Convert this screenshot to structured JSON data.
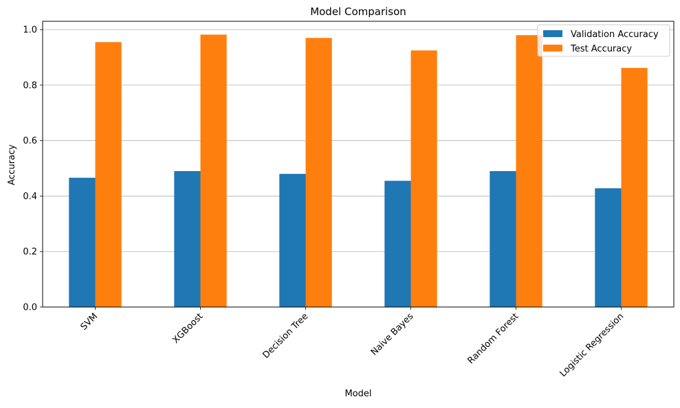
{
  "chart_data": {
    "type": "bar",
    "title": "Model Comparison",
    "xlabel": "Model",
    "ylabel": "Accuracy",
    "categories": [
      "SVM",
      "XGBoost",
      "Decision Tree",
      "Naive Bayes",
      "Random Forest",
      "Logistic Regression"
    ],
    "series": [
      {
        "name": "Validation Accuracy",
        "color": "#1f77b4",
        "values": [
          0.466,
          0.49,
          0.48,
          0.455,
          0.49,
          0.428
        ]
      },
      {
        "name": "Test Accuracy",
        "color": "#ff7f0e",
        "values": [
          0.955,
          0.982,
          0.97,
          0.925,
          0.98,
          0.862
        ]
      }
    ],
    "ylim": [
      0,
      1.0
    ],
    "yticks": [
      "0.0",
      "0.2",
      "0.4",
      "0.6",
      "0.8",
      "1.0"
    ],
    "grid": "horizontal",
    "legend_position": "top-right"
  }
}
